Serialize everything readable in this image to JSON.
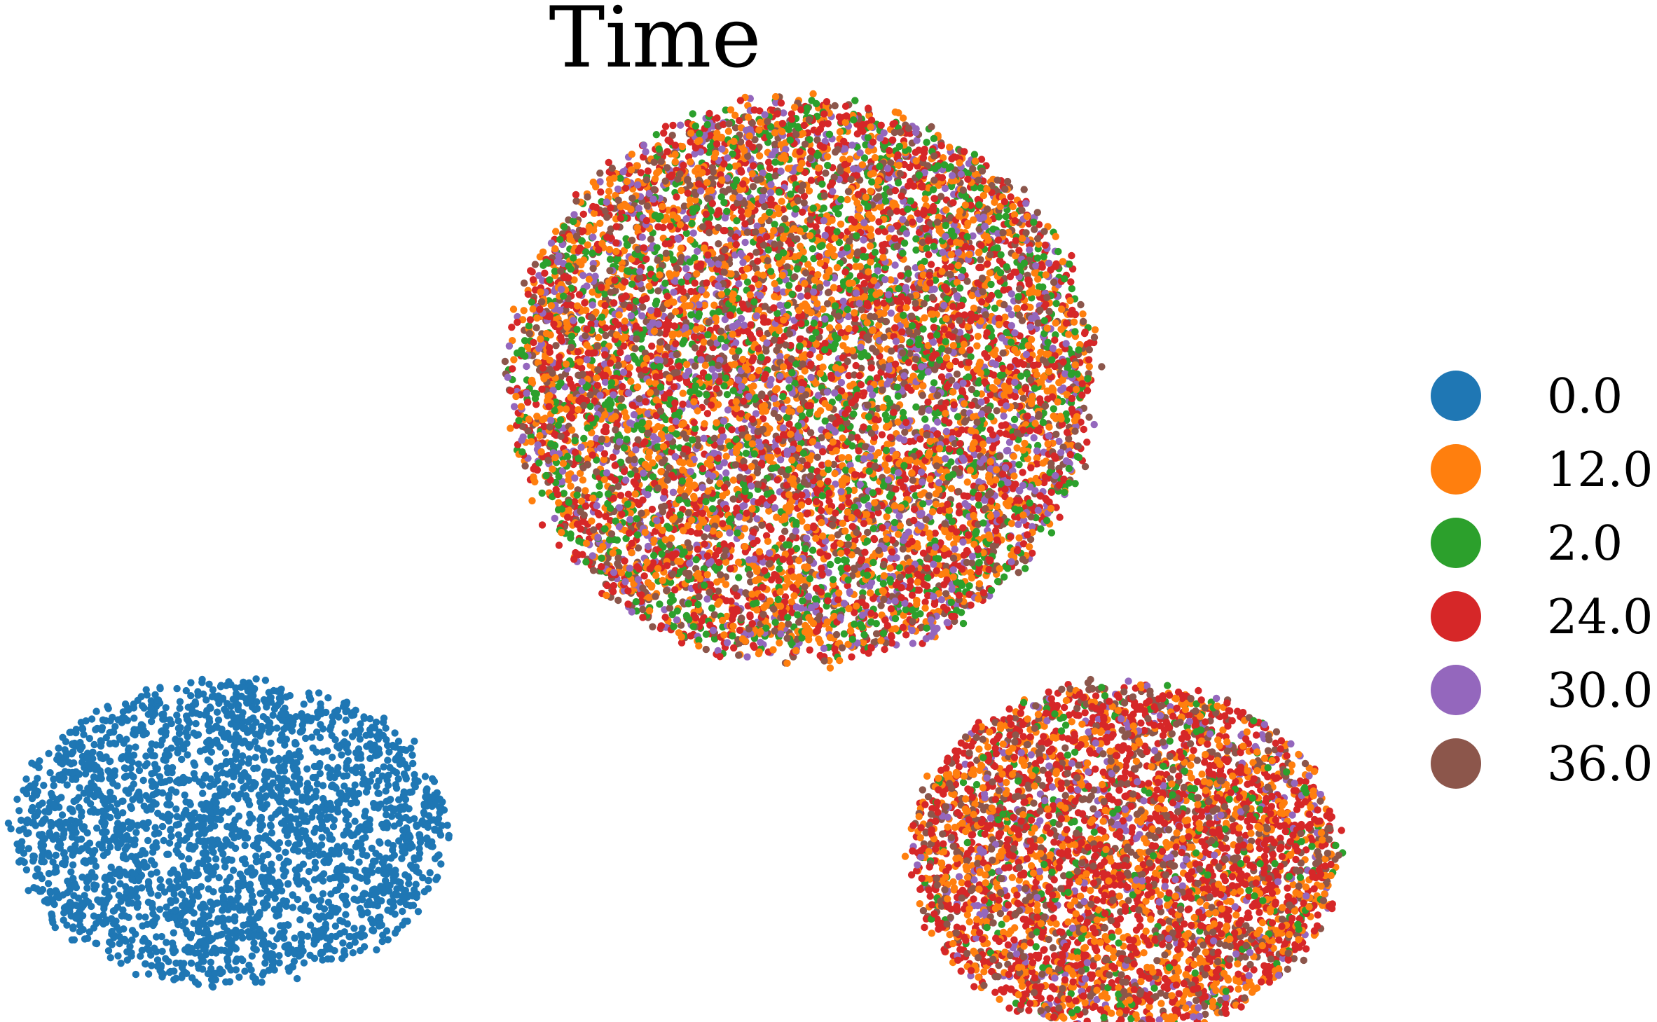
{
  "chart_data": {
    "type": "scatter",
    "title": "Time",
    "xlabel": "",
    "ylabel": "",
    "axes_visible": false,
    "grid": false,
    "legend_position": "right",
    "legend": [
      {
        "name": "0.0",
        "color": "#1f77b4"
      },
      {
        "name": "12.0",
        "color": "#ff7f0e"
      },
      {
        "name": "2.0",
        "color": "#2ca02c"
      },
      {
        "name": "24.0",
        "color": "#d62728"
      },
      {
        "name": "30.0",
        "color": "#9467bd"
      },
      {
        "name": "36.0",
        "color": "#8c564b"
      }
    ],
    "clusters": [
      {
        "name": "top cluster",
        "center": [
          0.5,
          0.3
        ],
        "radius": [
          0.32,
          0.24
        ],
        "point_count": 9000,
        "series_weights": {
          "0.0": 0,
          "12.0": 0.26,
          "2.0": 0.18,
          "24.0": 0.26,
          "30.0": 0.15,
          "36.0": 0.15
        }
      },
      {
        "name": "bottom-left cluster",
        "center": [
          -0.12,
          -0.08
        ],
        "radius": [
          0.24,
          0.13
        ],
        "point_count": 2600,
        "series_weights": {
          "0.0": 1,
          "12.0": 0,
          "2.0": 0,
          "24.0": 0,
          "30.0": 0,
          "36.0": 0
        }
      },
      {
        "name": "bottom-right cluster",
        "center": [
          0.85,
          -0.1
        ],
        "radius": [
          0.235,
          0.15
        ],
        "point_count": 4200,
        "series_weights": {
          "0.0": 0,
          "12.0": 0.27,
          "2.0": 0.07,
          "24.0": 0.4,
          "30.0": 0.08,
          "36.0": 0.18
        }
      }
    ]
  }
}
